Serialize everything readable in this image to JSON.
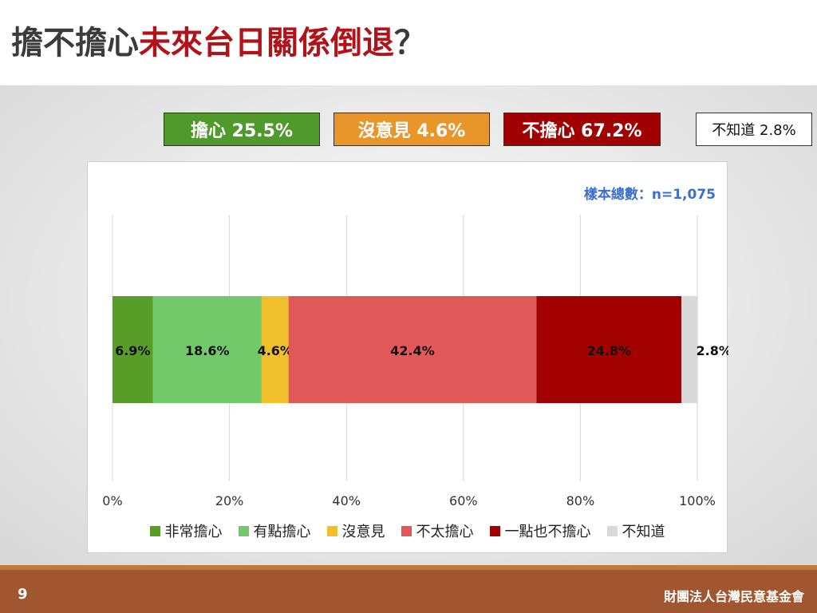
{
  "title": {
    "part1": "擔不擔心",
    "part2": "未來台日關係倒退",
    "part3": "？"
  },
  "summary": [
    {
      "key": "worried",
      "label": "擔心 25.5%",
      "color": "#4f9a2a"
    },
    {
      "key": "no_opinion",
      "label": "沒意見 4.6%",
      "color": "#e8962a"
    },
    {
      "key": "not_worried",
      "label": "不擔心 67.2%",
      "color": "#a00000"
    },
    {
      "key": "unknown",
      "label": "不知道 2.8%",
      "color": "#ffffff"
    }
  ],
  "sample_size": "樣本總數：n=1,075",
  "chart_data": {
    "type": "bar",
    "orientation": "horizontal",
    "stacked": true,
    "xlim": [
      0,
      100
    ],
    "xticks": [
      "0%",
      "20%",
      "40%",
      "60%",
      "80%",
      "100%"
    ],
    "grid": true,
    "legend_position": "bottom",
    "series": [
      {
        "name": "非常擔心",
        "value": 6.9,
        "label": "6.9%",
        "color": "#589d28"
      },
      {
        "name": "有點擔心",
        "value": 18.6,
        "label": "18.6%",
        "color": "#72c96a"
      },
      {
        "name": "沒意見",
        "value": 4.6,
        "label": "4.6%",
        "color": "#f1be2c"
      },
      {
        "name": "不太擔心",
        "value": 42.4,
        "label": "42.4%",
        "color": "#e05858"
      },
      {
        "name": "一點也不擔心",
        "value": 24.8,
        "label": "24.8%",
        "color": "#a30000"
      },
      {
        "name": "不知道",
        "value": 2.8,
        "label": "2.8%",
        "color": "#d9d9d9"
      }
    ]
  },
  "footer": {
    "page_number": "9",
    "organization": "財團法人台灣民意基金會"
  }
}
